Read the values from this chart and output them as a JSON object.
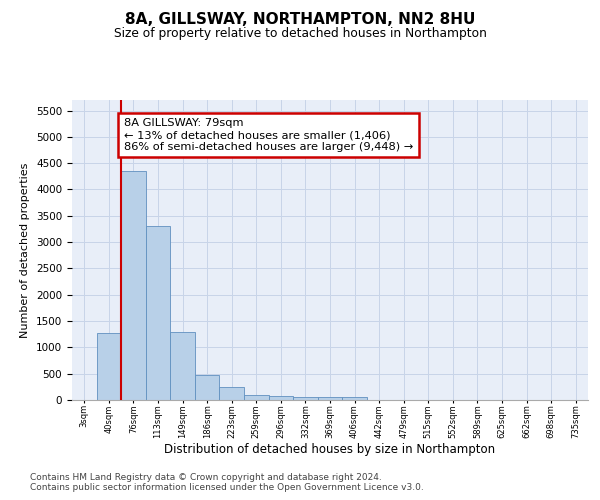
{
  "title": "8A, GILLSWAY, NORTHAMPTON, NN2 8HU",
  "subtitle": "Size of property relative to detached houses in Northampton",
  "xlabel": "Distribution of detached houses by size in Northampton",
  "ylabel": "Number of detached properties",
  "bar_labels": [
    "3sqm",
    "40sqm",
    "76sqm",
    "113sqm",
    "149sqm",
    "186sqm",
    "223sqm",
    "259sqm",
    "296sqm",
    "332sqm",
    "369sqm",
    "406sqm",
    "442sqm",
    "479sqm",
    "515sqm",
    "552sqm",
    "589sqm",
    "625sqm",
    "662sqm",
    "698sqm",
    "735sqm"
  ],
  "bar_values": [
    0,
    1280,
    4350,
    3300,
    1300,
    480,
    240,
    100,
    80,
    60,
    55,
    55,
    0,
    0,
    0,
    0,
    0,
    0,
    0,
    0,
    0
  ],
  "bar_color": "#b8d0e8",
  "bar_edge_color": "#6090c0",
  "redline_color": "#cc0000",
  "annotation_line1": "8A GILLSWAY: 79sqm",
  "annotation_line2": "← 13% of detached houses are smaller (1,406)",
  "annotation_line3": "86% of semi-detached houses are larger (9,448) →",
  "annotation_box_facecolor": "#ffffff",
  "annotation_box_edgecolor": "#cc0000",
  "ylim": [
    0,
    5700
  ],
  "yticks": [
    0,
    500,
    1000,
    1500,
    2000,
    2500,
    3000,
    3500,
    4000,
    4500,
    5000,
    5500
  ],
  "grid_color": "#c8d4e8",
  "background_color": "#e8eef8",
  "footer_line1": "Contains HM Land Registry data © Crown copyright and database right 2024.",
  "footer_line2": "Contains public sector information licensed under the Open Government Licence v3.0."
}
